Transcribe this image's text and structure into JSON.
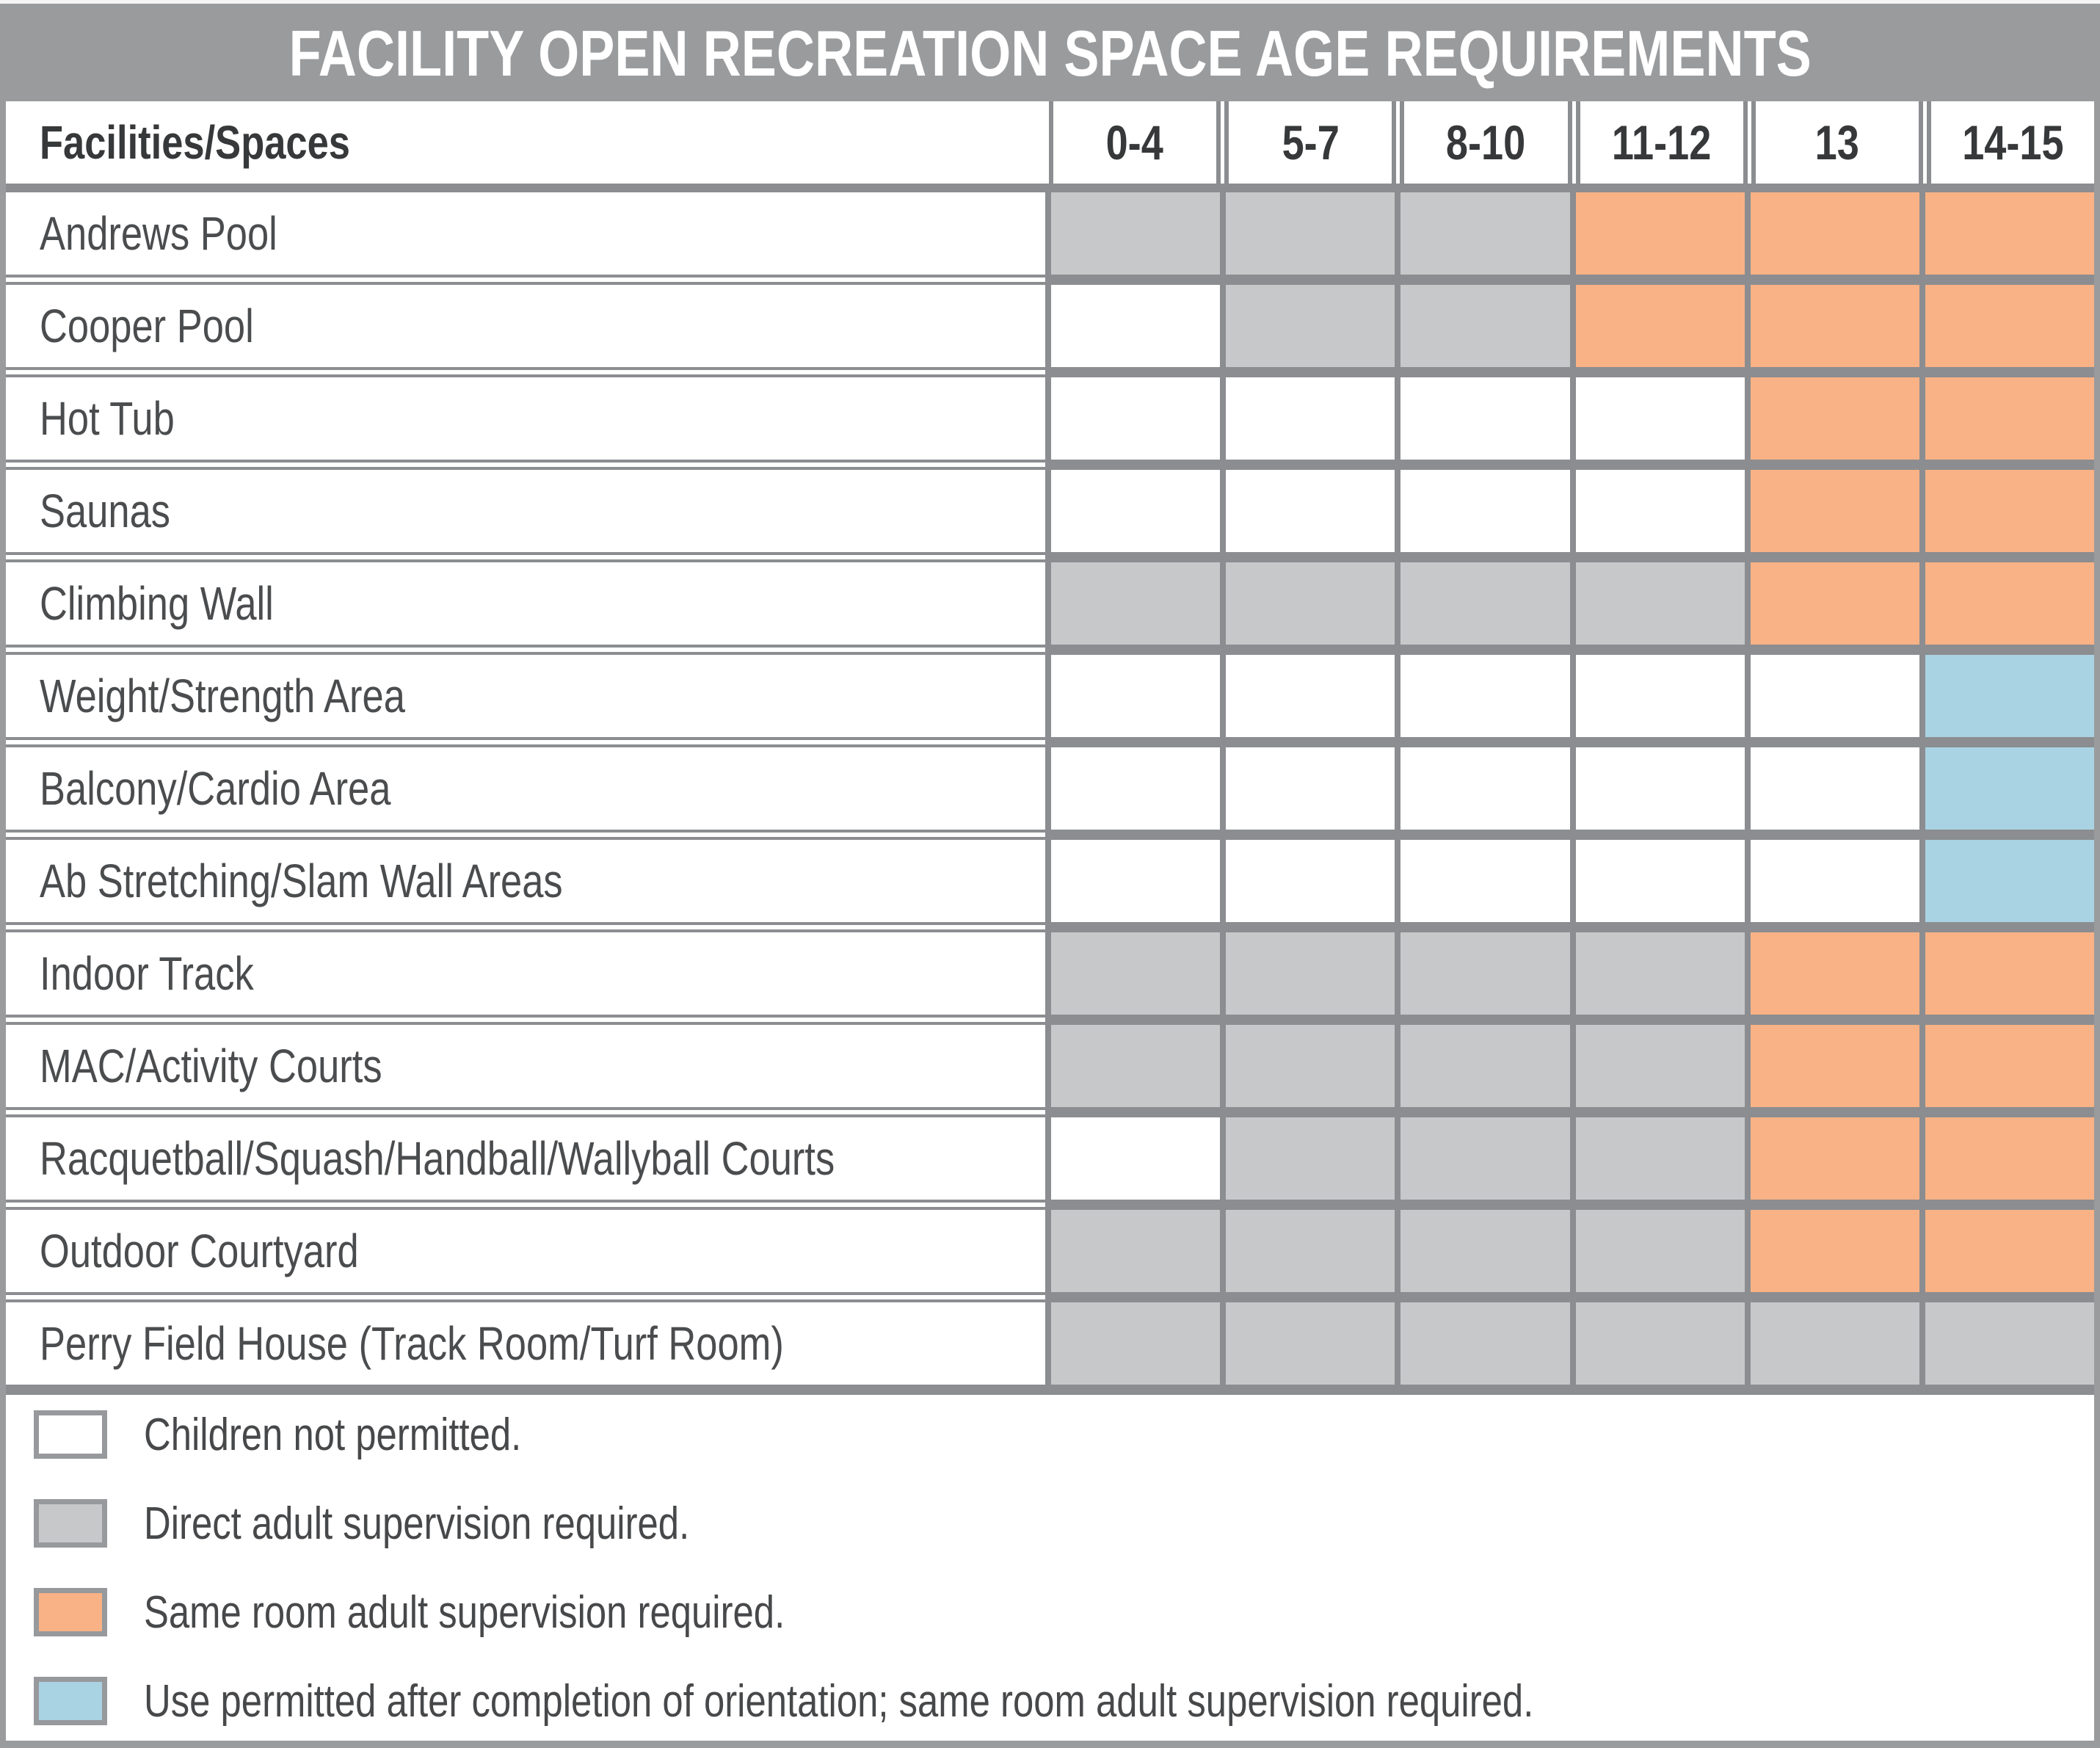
{
  "chart_data": {
    "type": "table",
    "title": "FACILITY OPEN RECREATION SPACE AGE REQUIREMENTS",
    "row_header": "Facilities/Spaces",
    "columns": [
      "0-4",
      "5-7",
      "8-10",
      "11-12",
      "13",
      "14-15"
    ],
    "rows": [
      {
        "facility": "Andrews Pool",
        "cells": [
          "gray",
          "gray",
          "gray",
          "orange",
          "orange",
          "orange"
        ]
      },
      {
        "facility": "Cooper Pool",
        "cells": [
          "white",
          "gray",
          "gray",
          "orange",
          "orange",
          "orange"
        ]
      },
      {
        "facility": "Hot Tub",
        "cells": [
          "white",
          "white",
          "white",
          "white",
          "orange",
          "orange"
        ]
      },
      {
        "facility": "Saunas",
        "cells": [
          "white",
          "white",
          "white",
          "white",
          "orange",
          "orange"
        ]
      },
      {
        "facility": "Climbing Wall",
        "cells": [
          "gray",
          "gray",
          "gray",
          "gray",
          "orange",
          "orange"
        ]
      },
      {
        "facility": "Weight/Strength Area",
        "cells": [
          "white",
          "white",
          "white",
          "white",
          "white",
          "blue"
        ]
      },
      {
        "facility": "Balcony/Cardio Area",
        "cells": [
          "white",
          "white",
          "white",
          "white",
          "white",
          "blue"
        ]
      },
      {
        "facility": "Ab Stretching/Slam Wall Areas",
        "cells": [
          "white",
          "white",
          "white",
          "white",
          "white",
          "blue"
        ]
      },
      {
        "facility": "Indoor Track",
        "cells": [
          "gray",
          "gray",
          "gray",
          "gray",
          "orange",
          "orange"
        ]
      },
      {
        "facility": "MAC/Activity Courts",
        "cells": [
          "gray",
          "gray",
          "gray",
          "gray",
          "orange",
          "orange"
        ]
      },
      {
        "facility": "Racquetball/Squash/Handball/Wallyball Courts",
        "cells": [
          "white",
          "gray",
          "gray",
          "gray",
          "orange",
          "orange"
        ]
      },
      {
        "facility": "Outdoor Courtyard",
        "cells": [
          "gray",
          "gray",
          "gray",
          "gray",
          "orange",
          "orange"
        ]
      },
      {
        "facility": "Perry Field House (Track Room/Turf Room)",
        "cells": [
          "gray",
          "gray",
          "gray",
          "gray",
          "gray",
          "gray"
        ]
      }
    ],
    "legend": [
      {
        "color": "white",
        "label": "Children not permitted."
      },
      {
        "color": "gray",
        "label": "Direct adult supervision required."
      },
      {
        "color": "orange",
        "label": "Same room adult supervision required."
      },
      {
        "color": "blue",
        "label": "Use permitted after completion of orientation; same room adult supervision required."
      }
    ],
    "cell_color_meaning": {
      "white": "Children not permitted.",
      "gray": "Direct adult supervision required.",
      "orange": "Same room adult supervision required.",
      "blue": "Use permitted after completion of orientation; same room adult supervision required."
    }
  },
  "colors": {
    "white": "#FFFFFF",
    "gray": "#C7C8CA",
    "orange": "#F8B285",
    "blue": "#A9D3E2",
    "border": "#8B8D90",
    "titlebar": "#9A9B9D",
    "frame": "#9A9B9D",
    "text-dark": "#363839",
    "text-label": "#4A4C4E"
  }
}
